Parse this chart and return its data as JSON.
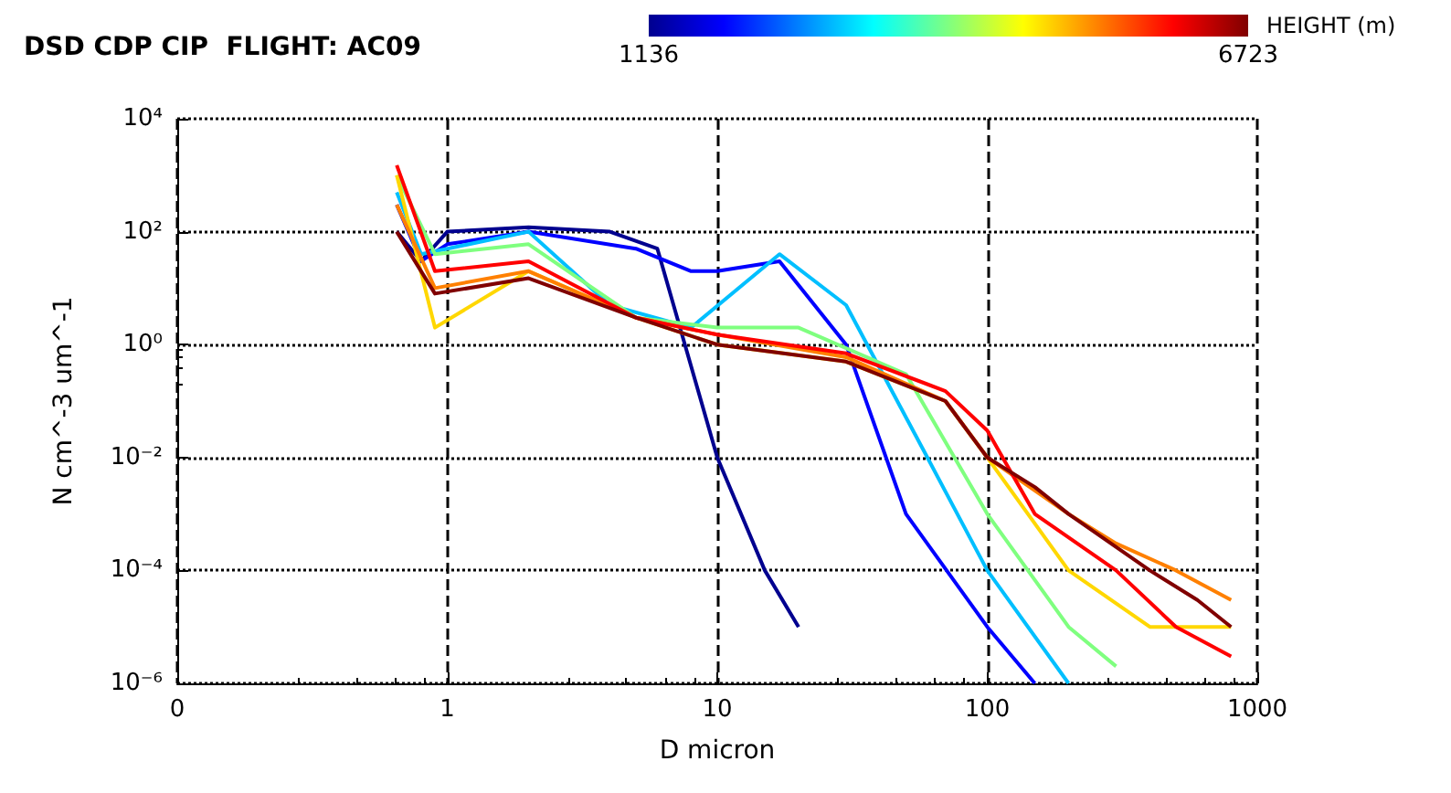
{
  "chart_data": {
    "type": "line",
    "title": "DSD CDP CIP  FLIGHT: AC09",
    "xlabel": "D micron",
    "ylabel": "N cm^-3 um^-1",
    "clabel": "HEIGHT (m)",
    "clim": [
      1136,
      6723
    ],
    "cticks": [
      1136,
      6723
    ],
    "log": "xy",
    "grid": true,
    "xlim": [
      0.1,
      1000
    ],
    "xticks": [
      {
        "value": 0.1,
        "label": "0"
      },
      1,
      10,
      100,
      1000
    ],
    "ylim": [
      1e-06,
      10000
    ],
    "yticks": [
      {
        "value": 1e-06,
        "label": "10⁻⁶"
      },
      {
        "value": 0.0001,
        "label": "10⁻⁴"
      },
      {
        "value": 0.01,
        "label": "10⁻²"
      },
      {
        "value": 1,
        "label": "10⁰"
      },
      {
        "value": 100,
        "label": "10²"
      },
      {
        "value": 10000,
        "label": "10⁴"
      }
    ],
    "series": [
      {
        "color": "#00008f",
        "x": [
          0.65,
          0.8,
          1,
          2,
          4,
          6,
          10,
          15,
          20
        ],
        "values": [
          100,
          30,
          100,
          120,
          100,
          50,
          0.01,
          0.0001,
          1e-05
        ]
      },
      {
        "color": "#0000ff",
        "x": [
          0.65,
          0.8,
          1,
          2,
          5,
          8,
          10,
          17,
          30,
          50,
          100,
          150
        ],
        "values": [
          300,
          30,
          60,
          100,
          50,
          20,
          20,
          30,
          1,
          0.001,
          1e-05,
          1e-06
        ]
      },
      {
        "color": "#00bfff",
        "x": [
          0.65,
          0.8,
          1,
          2,
          4,
          8,
          17,
          30,
          60,
          100,
          200
        ],
        "values": [
          500,
          40,
          50,
          100,
          5,
          2,
          40,
          5,
          0.01,
          0.0001,
          1e-06
        ]
      },
      {
        "color": "#7fff7f",
        "x": [
          0.65,
          0.9,
          2,
          5,
          10,
          20,
          50,
          100,
          200,
          300
        ],
        "values": [
          1000,
          40,
          60,
          3,
          2,
          2,
          0.3,
          0.001,
          1e-05,
          2e-06
        ]
      },
      {
        "color": "#ffd700",
        "x": [
          0.65,
          0.9,
          2,
          5,
          10,
          30,
          70,
          100,
          200,
          400,
          800
        ],
        "values": [
          1000,
          2,
          20,
          3,
          1,
          0.5,
          0.1,
          0.01,
          0.0001,
          1e-05,
          1e-05
        ]
      },
      {
        "color": "#ff8000",
        "x": [
          0.65,
          0.9,
          2,
          5,
          10,
          30,
          70,
          100,
          200,
          300,
          500,
          800
        ],
        "values": [
          300,
          10,
          20,
          3,
          1.5,
          0.6,
          0.1,
          0.01,
          0.001,
          0.0003,
          0.0001,
          3e-05
        ]
      },
      {
        "color": "#ff0000",
        "x": [
          0.65,
          0.9,
          2,
          5,
          10,
          30,
          70,
          100,
          150,
          300,
          500,
          800
        ],
        "values": [
          1500,
          20,
          30,
          3,
          1.5,
          0.7,
          0.15,
          0.03,
          0.001,
          0.0001,
          1e-05,
          3e-06
        ]
      },
      {
        "color": "#800000",
        "x": [
          0.65,
          0.9,
          2,
          5,
          10,
          30,
          70,
          100,
          150,
          200,
          400,
          600,
          800
        ],
        "values": [
          100,
          8,
          15,
          3,
          1,
          0.5,
          0.1,
          0.01,
          0.003,
          0.001,
          0.0001,
          3e-05,
          1e-05
        ]
      }
    ]
  }
}
